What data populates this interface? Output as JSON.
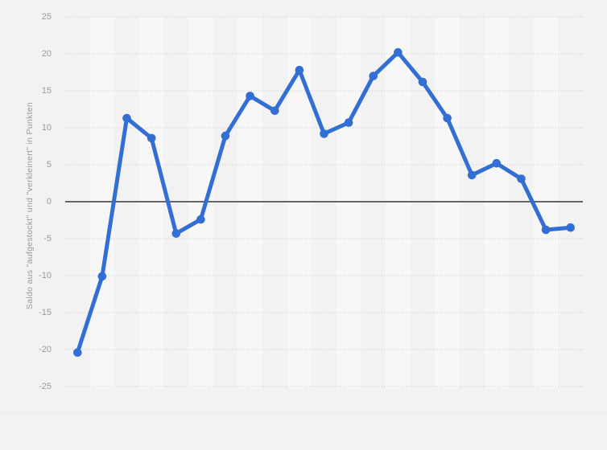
{
  "chart_data": {
    "type": "line",
    "title": "",
    "xlabel": "",
    "ylabel": "Saldo aus \"aufgestockt\" und \"verkleinert\" in Punkten",
    "x": [
      1,
      2,
      3,
      4,
      5,
      6,
      7,
      8,
      9,
      10,
      11,
      12,
      13,
      14,
      15,
      16,
      17,
      18,
      19,
      20,
      21
    ],
    "x_tick_labels_visible": false,
    "series": [
      {
        "name": "Saldo",
        "values": [
          -20.4,
          -10.1,
          11.3,
          8.6,
          -4.3,
          -2.4,
          8.9,
          14.3,
          12.3,
          17.8,
          9.2,
          10.7,
          17.0,
          20.2,
          16.2,
          11.3,
          3.6,
          5.2,
          3.1,
          -3.8,
          -3.5
        ]
      }
    ],
    "ylim": [
      -25,
      25
    ],
    "yticks": [
      25,
      20,
      15,
      10,
      5,
      0,
      -5,
      -10,
      -15,
      -20,
      -25
    ],
    "grid": "horizontal-dotted",
    "zero_line": true,
    "legend": "none",
    "background_bands": "alternating-vertical"
  },
  "colors": {
    "line": "#326ed4",
    "marker": "#326ed4",
    "background": "#f2f2f2",
    "band_light": "#f7f7f8",
    "band_dark": "#f2f2f2",
    "gridline": "#cccccc",
    "zero_line": "#666666",
    "tick_label": "#9a9a9a",
    "axis_title": "#9a9a9a"
  }
}
